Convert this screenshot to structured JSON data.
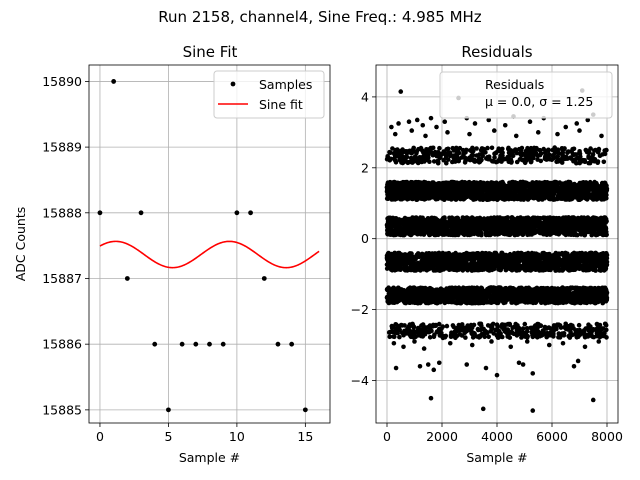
{
  "suptitle": "Run 2158, channel4, Sine Freq.: 4.985 MHz",
  "chart_data": [
    {
      "type": "scatter",
      "title": "Sine Fit",
      "xlabel": "Sample #",
      "ylabel": "ADC Counts",
      "xlim": [
        -0.8,
        16.8
      ],
      "ylim": [
        15884.8,
        15890.25
      ],
      "xticks": [
        0,
        5,
        10,
        15
      ],
      "xtick_labels": [
        "0",
        "5",
        "10",
        "15"
      ],
      "yticks": [
        15885,
        15886,
        15887,
        15888,
        15889,
        15890
      ],
      "ytick_labels": [
        "15885",
        "15886",
        "15887",
        "15888",
        "15889",
        "15890"
      ],
      "grid": true,
      "legend": {
        "position": "top-right",
        "entries": [
          "Samples",
          "Sine fit"
        ]
      },
      "series": [
        {
          "name": "Samples",
          "style": "points",
          "color": "#000000",
          "x": [
            0,
            1,
            2,
            3,
            4,
            5,
            6,
            7,
            8,
            9,
            10,
            11,
            12,
            13,
            14,
            15
          ],
          "y": [
            15888,
            15890,
            15887,
            15888,
            15886,
            15885,
            15886,
            15886,
            15886,
            15886,
            15888,
            15888,
            15887,
            15886,
            15886,
            15885
          ]
        },
        {
          "name": "Sine fit",
          "style": "line",
          "color": "#ff0000",
          "model": {
            "offset": 15887.365,
            "amplitude": 0.2,
            "period": 8.3,
            "phase_at_zero": 0.7
          },
          "x_range": [
            0,
            16
          ]
        }
      ]
    },
    {
      "type": "scatter",
      "title": "Residuals",
      "xlabel": "Sample #",
      "ylabel": "",
      "xlim": [
        -400,
        8400
      ],
      "ylim": [
        -5.2,
        4.9
      ],
      "xticks": [
        0,
        2000,
        4000,
        6000,
        8000
      ],
      "xtick_labels": [
        "0",
        "2000",
        "4000",
        "6000",
        "8000"
      ],
      "yticks": [
        -4,
        -2,
        0,
        2,
        4
      ],
      "ytick_labels": [
        "−4",
        "−2",
        "0",
        "2",
        "4"
      ],
      "grid": true,
      "legend": {
        "position": "top-right",
        "entries": [
          "Residuals",
          "μ = 0.0, σ = 1.25"
        ]
      },
      "stats": {
        "mu": "0.0",
        "sigma": "1.25"
      },
      "series": [
        {
          "name": "Residuals",
          "style": "points",
          "color": "#000000",
          "n_samples": 8000,
          "bands": [
            {
              "center": 2.35,
              "spread": 0.22,
              "density": "medium"
            },
            {
              "center": 1.35,
              "spread": 0.25,
              "density": "dense"
            },
            {
              "center": 0.35,
              "spread": 0.25,
              "density": "dense"
            },
            {
              "center": -0.65,
              "spread": 0.25,
              "density": "dense"
            },
            {
              "center": -1.6,
              "spread": 0.22,
              "density": "dense"
            },
            {
              "center": -2.6,
              "spread": 0.2,
              "density": "medium"
            }
          ],
          "outliers": [
            [
              500,
              4.15
            ],
            [
              2600,
              3.97
            ],
            [
              7100,
              4.18
            ],
            [
              160,
              3.15
            ],
            [
              420,
              3.25
            ],
            [
              800,
              3.3
            ],
            [
              1100,
              3.35
            ],
            [
              1300,
              3.2
            ],
            [
              1600,
              3.4
            ],
            [
              1800,
              3.15
            ],
            [
              2100,
              3.3
            ],
            [
              2900,
              3.4
            ],
            [
              3200,
              3.25
            ],
            [
              3700,
              3.35
            ],
            [
              4300,
              3.2
            ],
            [
              4600,
              3.45
            ],
            [
              5200,
              3.3
            ],
            [
              5700,
              3.4
            ],
            [
              6500,
              3.15
            ],
            [
              6900,
              3.25
            ],
            [
              7300,
              3.35
            ],
            [
              7500,
              3.5
            ],
            [
              330,
              -3.65
            ],
            [
              1200,
              -3.6
            ],
            [
              1500,
              -3.55
            ],
            [
              1700,
              -3.7
            ],
            [
              1900,
              -3.5
            ],
            [
              2900,
              -3.55
            ],
            [
              3600,
              -3.65
            ],
            [
              4000,
              -3.85
            ],
            [
              4800,
              -3.5
            ],
            [
              4950,
              -3.55
            ],
            [
              5300,
              -3.8
            ],
            [
              6800,
              -3.6
            ],
            [
              6950,
              -3.45
            ],
            [
              1600,
              -4.5
            ],
            [
              3500,
              -4.8
            ],
            [
              5300,
              -4.85
            ],
            [
              7500,
              -4.55
            ],
            [
              250,
              -2.95
            ],
            [
              600,
              -3.05
            ],
            [
              1000,
              -2.9
            ],
            [
              1350,
              -3.1
            ],
            [
              2300,
              -2.95
            ],
            [
              3100,
              -3.0
            ],
            [
              3800,
              -2.9
            ],
            [
              4500,
              -3.05
            ],
            [
              5100,
              -2.9
            ],
            [
              5900,
              -3.0
            ],
            [
              6400,
              -2.95
            ],
            [
              7200,
              -3.05
            ],
            [
              7700,
              -2.9
            ],
            [
              300,
              2.95
            ],
            [
              900,
              3.05
            ],
            [
              1400,
              2.9
            ],
            [
              2200,
              3.0
            ],
            [
              3000,
              2.95
            ],
            [
              3900,
              3.05
            ],
            [
              4700,
              2.9
            ],
            [
              5500,
              3.0
            ],
            [
              6200,
              2.95
            ],
            [
              7000,
              3.05
            ],
            [
              7800,
              2.9
            ]
          ]
        }
      ]
    }
  ]
}
